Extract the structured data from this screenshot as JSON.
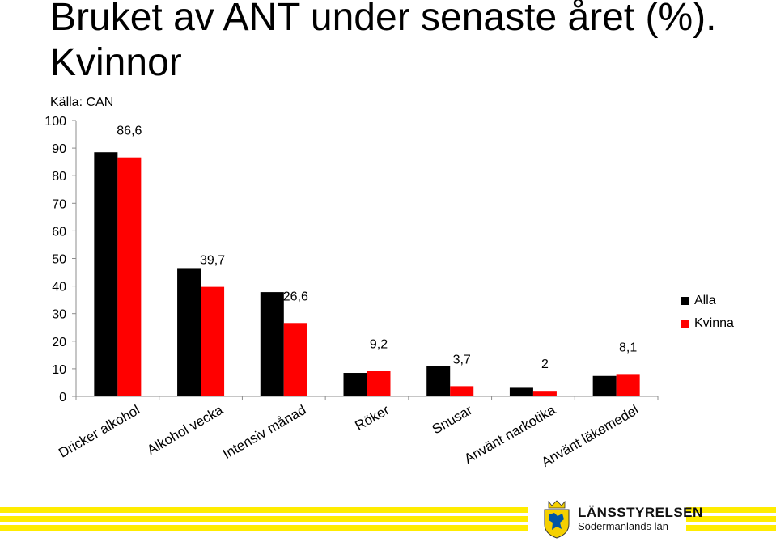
{
  "title": "Bruket av ANT under senaste året (%). Kvinnor",
  "source": "Källa: CAN",
  "chart_data": {
    "type": "bar",
    "title": "Bruket av ANT under senaste året (%). Kvinnor",
    "categories": [
      "Dricker alkohol",
      "Alkohol vecka",
      "Intensiv månad",
      "Röker",
      "Snusar",
      "Använt narkotika",
      "Använt läkemedel"
    ],
    "series": [
      {
        "name": "Alla",
        "values": [
          88.5,
          46.5,
          37.8,
          8.5,
          11,
          3.1,
          7.4
        ],
        "color": "#000000"
      },
      {
        "name": "Kvinna",
        "values": [
          86.6,
          39.7,
          26.6,
          9.2,
          3.7,
          2,
          8.1
        ],
        "color": "#ff0000"
      }
    ],
    "data_labels": [
      "86,6",
      "39,7",
      "26,6",
      "9,2",
      "3,7",
      "2",
      "8,1"
    ],
    "y_ticks": [
      "0",
      "10",
      "20",
      "30",
      "40",
      "50",
      "60",
      "70",
      "80",
      "90",
      "100"
    ],
    "ylim": [
      0,
      100
    ],
    "xlabel": "",
    "ylabel": "",
    "grid": false,
    "legend_position": "right"
  },
  "logo": {
    "name_line1": "LÄNSSTYRELSEN",
    "name_line2": "Södermanlands län"
  },
  "colors": {
    "footer_band": "#ffec00",
    "logo_yellow": "#f5d000",
    "logo_blue": "#0055a5"
  }
}
